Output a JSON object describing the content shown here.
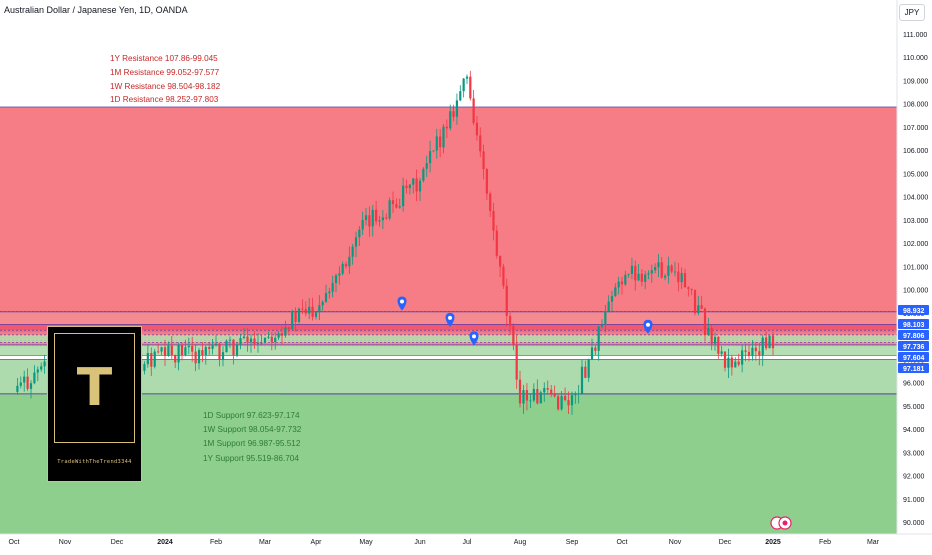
{
  "header": {
    "title": "Australian Dollar / Japanese Yen, 1D, OANDA",
    "currency_button": "JPY"
  },
  "resistance_labels": [
    "1Y Resistance 107.86-99.045",
    "1M Resistance 99.052-97.577",
    "1W Resistance 98.504-98.182",
    "1D Resistance 98.252-97.803"
  ],
  "support_labels": [
    "1D Support 97.623-97.174",
    "1W Support 98.054-97.732",
    "1M Support 96.987-95.512",
    "1Y Support 95.519-86.704"
  ],
  "logo": {
    "letter": "T",
    "caption": "TradeWithTheTrend3344"
  },
  "colors": {
    "resistance_zone": "#f5767e",
    "support_zone": "#8ecf8e",
    "zone_border": "#5b3fa6",
    "candle_up": "#089981",
    "candle_down": "#f23645",
    "marker": "#2962ff",
    "price_tag": "#2962ff"
  },
  "icons": [
    "location-pin-icon",
    "tradingview-logo-icon"
  ],
  "chart_data": {
    "type": "candlestick",
    "title": "Australian Dollar / Japanese Yen, 1D, OANDA",
    "x_ticks": [
      "Oct",
      "Nov",
      "Dec",
      "2024",
      "Feb",
      "Mar",
      "Apr",
      "May",
      "Jun",
      "Jul",
      "Aug",
      "Sep",
      "Oct",
      "Nov",
      "Dec",
      "2025",
      "Feb",
      "Mar"
    ],
    "y_ticks": [
      "90.000",
      "91.000",
      "92.000",
      "93.000",
      "94.000",
      "95.000",
      "96.000",
      "97.000",
      "98.000",
      "99.000",
      "100.000",
      "101.000",
      "102.000",
      "103.000",
      "104.000",
      "105.000",
      "106.000",
      "107.000",
      "108.000",
      "109.000",
      "110.000",
      "111.000"
    ],
    "ylim": [
      89.6,
      111.6
    ],
    "price_tags": [
      "98.932",
      "98.103",
      "97.806",
      "97.736",
      "97.604",
      "97.181"
    ],
    "zones": [
      {
        "name": "1Y Resistance",
        "from": 99.045,
        "to": 107.86
      },
      {
        "name": "1M Resistance",
        "from": 97.577,
        "to": 99.052
      },
      {
        "name": "1W Resistance",
        "from": 98.182,
        "to": 98.504
      },
      {
        "name": "1D Resistance",
        "from": 97.803,
        "to": 98.252
      },
      {
        "name": "1D Support",
        "from": 97.174,
        "to": 97.623
      },
      {
        "name": "1W Support",
        "from": 97.732,
        "to": 98.054
      },
      {
        "name": "1M Support",
        "from": 95.512,
        "to": 96.987
      },
      {
        "name": "1Y Support",
        "from": 86.704,
        "to": 95.519
      }
    ],
    "markers": [
      {
        "month": "May",
        "price": 99.4
      },
      {
        "month": "Jun",
        "price": 98.7
      },
      {
        "month": "Jul",
        "price": 97.9
      },
      {
        "month": "Oct",
        "price": 98.4
      }
    ],
    "price_path": [
      [
        "Oct",
        95.6
      ],
      [
        "Nov",
        97.5
      ],
      [
        "Dec",
        96.5
      ],
      [
        "2024",
        97.2
      ],
      [
        "Feb",
        97.3
      ],
      [
        "Mar",
        98.0
      ],
      [
        "Apr",
        99.3
      ],
      [
        "May",
        102.8
      ],
      [
        "Jun",
        104.6
      ],
      [
        "Jul",
        109.2
      ],
      [
        "Aug",
        95.5
      ],
      [
        "Sep",
        95.2
      ],
      [
        "Oct",
        100.6
      ],
      [
        "Nov",
        101.0
      ],
      [
        "Dec",
        96.8
      ],
      [
        "2025",
        97.7
      ]
    ]
  }
}
